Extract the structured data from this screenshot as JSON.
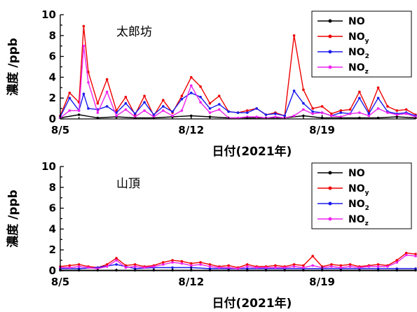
{
  "chart_data": [
    {
      "type": "line",
      "site_label": "太郎坊",
      "ylabel": "濃度 /ppb",
      "xlabel": "日付(2021年)",
      "ylim": [
        0,
        10
      ],
      "yticks": [
        0,
        2,
        4,
        6,
        8,
        10
      ],
      "xlim": [
        "2021-08-05",
        "2021-08-24"
      ],
      "xticks": [
        {
          "x": "2021-08-05",
          "label": "8/5"
        },
        {
          "x": "2021-08-12",
          "label": "8/12"
        },
        {
          "x": "2021-08-19",
          "label": "8/19"
        }
      ],
      "legend_position": "top-right",
      "series": [
        {
          "name": "NO",
          "subscript": "",
          "color": "#000000",
          "x": [
            "2021-08-05",
            "2021-08-06",
            "2021-08-07",
            "2021-08-08",
            "2021-08-09",
            "2021-08-10",
            "2021-08-11",
            "2021-08-12",
            "2021-08-13",
            "2021-08-14",
            "2021-08-15",
            "2021-08-16",
            "2021-08-17",
            "2021-08-18",
            "2021-08-19",
            "2021-08-20",
            "2021-08-21",
            "2021-08-22",
            "2021-08-23",
            "2021-08-24"
          ],
          "values": [
            0.1,
            0.4,
            0.1,
            0.2,
            0.1,
            0.1,
            0.2,
            0.3,
            0.2,
            0.1,
            0.1,
            0.1,
            0.1,
            0.3,
            0.1,
            0.1,
            0.1,
            0.1,
            0.2,
            0.1
          ]
        },
        {
          "name": "NO",
          "subscript": "y",
          "color": "#ee0000",
          "x": [
            "2021-08-05",
            "2021-08-05 12:00",
            "2021-08-06",
            "2021-08-06 06:00",
            "2021-08-06 12:00",
            "2021-08-07",
            "2021-08-07 12:00",
            "2021-08-08",
            "2021-08-08 12:00",
            "2021-08-09",
            "2021-08-09 12:00",
            "2021-08-10",
            "2021-08-10 12:00",
            "2021-08-11",
            "2021-08-11 12:00",
            "2021-08-12",
            "2021-08-12 12:00",
            "2021-08-13",
            "2021-08-13 12:00",
            "2021-08-14",
            "2021-08-14 12:00",
            "2021-08-15",
            "2021-08-15 12:00",
            "2021-08-16",
            "2021-08-16 12:00",
            "2021-08-17",
            "2021-08-17 12:00",
            "2021-08-18",
            "2021-08-18 12:00",
            "2021-08-19",
            "2021-08-19 12:00",
            "2021-08-20",
            "2021-08-20 12:00",
            "2021-08-21",
            "2021-08-21 12:00",
            "2021-08-22",
            "2021-08-22 12:00",
            "2021-08-23",
            "2021-08-23 12:00",
            "2021-08-24"
          ],
          "values": [
            0.3,
            2.5,
            1.6,
            8.9,
            4.5,
            1.5,
            3.8,
            0.8,
            2.1,
            0.4,
            2.2,
            0.3,
            1.8,
            0.6,
            2.2,
            4.0,
            3.1,
            1.5,
            2.2,
            0.7,
            0.6,
            0.8,
            1.0,
            0.4,
            0.6,
            0.3,
            8.0,
            2.8,
            1.0,
            1.2,
            0.5,
            0.8,
            0.9,
            2.6,
            0.7,
            3.0,
            1.2,
            0.8,
            0.9,
            0.4
          ]
        },
        {
          "name": "NO",
          "subscript": "2",
          "color": "#1a1aee",
          "x": [
            "2021-08-05",
            "2021-08-05 12:00",
            "2021-08-06",
            "2021-08-06 06:00",
            "2021-08-06 12:00",
            "2021-08-07",
            "2021-08-07 12:00",
            "2021-08-08",
            "2021-08-08 12:00",
            "2021-08-09",
            "2021-08-09 12:00",
            "2021-08-10",
            "2021-08-10 12:00",
            "2021-08-11",
            "2021-08-11 12:00",
            "2021-08-12",
            "2021-08-12 12:00",
            "2021-08-13",
            "2021-08-13 12:00",
            "2021-08-14",
            "2021-08-14 12:00",
            "2021-08-15",
            "2021-08-15 12:00",
            "2021-08-16",
            "2021-08-16 12:00",
            "2021-08-17",
            "2021-08-17 12:00",
            "2021-08-18",
            "2021-08-18 12:00",
            "2021-08-19",
            "2021-08-19 12:00",
            "2021-08-20",
            "2021-08-20 12:00",
            "2021-08-21",
            "2021-08-21 12:00",
            "2021-08-22",
            "2021-08-22 12:00",
            "2021-08-23",
            "2021-08-23 12:00",
            "2021-08-24"
          ],
          "values": [
            0.2,
            2.0,
            0.8,
            2.4,
            1.0,
            0.9,
            1.2,
            0.6,
            1.5,
            0.5,
            1.6,
            0.4,
            1.2,
            0.7,
            1.9,
            2.5,
            2.1,
            1.0,
            1.4,
            0.7,
            0.6,
            0.6,
            1.0,
            0.4,
            0.5,
            0.3,
            2.7,
            1.5,
            0.7,
            0.6,
            0.3,
            0.6,
            0.5,
            2.0,
            0.5,
            2.0,
            0.7,
            0.5,
            0.6,
            0.3
          ]
        },
        {
          "name": "NO",
          "subscript": "z",
          "color": "#ee22ee",
          "x": [
            "2021-08-05",
            "2021-08-05 12:00",
            "2021-08-06",
            "2021-08-06 06:00",
            "2021-08-06 12:00",
            "2021-08-07",
            "2021-08-07 12:00",
            "2021-08-08",
            "2021-08-08 12:00",
            "2021-08-09",
            "2021-08-09 12:00",
            "2021-08-10",
            "2021-08-10 12:00",
            "2021-08-11",
            "2021-08-11 12:00",
            "2021-08-12",
            "2021-08-12 12:00",
            "2021-08-13",
            "2021-08-13 12:00",
            "2021-08-14",
            "2021-08-14 12:00",
            "2021-08-15",
            "2021-08-15 12:00",
            "2021-08-16",
            "2021-08-16 12:00",
            "2021-08-17",
            "2021-08-17 12:00",
            "2021-08-18",
            "2021-08-18 12:00",
            "2021-08-19",
            "2021-08-19 12:00",
            "2021-08-20",
            "2021-08-20 12:00",
            "2021-08-21",
            "2021-08-21 12:00",
            "2021-08-22",
            "2021-08-22 12:00",
            "2021-08-23",
            "2021-08-23 12:00",
            "2021-08-24"
          ],
          "values": [
            0.1,
            0.8,
            0.8,
            7.0,
            3.5,
            0.6,
            2.6,
            0.3,
            0.9,
            0.2,
            0.8,
            0.2,
            0.8,
            0.3,
            0.8,
            3.2,
            1.6,
            0.6,
            0.9,
            0.1,
            0.1,
            0.2,
            0.2,
            0.1,
            0.2,
            0.1,
            0.3,
            0.9,
            0.5,
            0.6,
            0.3,
            0.2,
            0.5,
            0.6,
            0.3,
            1.0,
            0.6,
            0.4,
            0.5,
            0.2
          ]
        }
      ]
    },
    {
      "type": "line",
      "site_label": "山頂",
      "ylabel": "濃度 /ppb",
      "xlabel": "日付(2021年)",
      "ylim": [
        0,
        10
      ],
      "yticks": [
        0,
        2,
        4,
        6,
        8,
        10
      ],
      "xlim": [
        "2021-08-05",
        "2021-08-24"
      ],
      "xticks": [
        {
          "x": "2021-08-05",
          "label": "8/5"
        },
        {
          "x": "2021-08-12",
          "label": "8/12"
        },
        {
          "x": "2021-08-19",
          "label": "8/19"
        }
      ],
      "legend_position": "top-right",
      "series": [
        {
          "name": "NO",
          "subscript": "",
          "color": "#000000",
          "x": [
            "2021-08-05",
            "2021-08-06",
            "2021-08-07",
            "2021-08-08",
            "2021-08-09",
            "2021-08-10",
            "2021-08-11",
            "2021-08-12",
            "2021-08-13",
            "2021-08-14",
            "2021-08-15",
            "2021-08-16",
            "2021-08-17",
            "2021-08-18",
            "2021-08-19",
            "2021-08-20",
            "2021-08-21",
            "2021-08-22",
            "2021-08-23",
            "2021-08-24"
          ],
          "values": [
            0.05,
            0.05,
            0.05,
            0.05,
            0.05,
            0.05,
            0.05,
            0.05,
            0.05,
            0.05,
            0.05,
            0.05,
            0.05,
            0.05,
            0.05,
            0.05,
            0.05,
            0.05,
            0.05,
            0.05
          ]
        },
        {
          "name": "NO",
          "subscript": "y",
          "color": "#ee0000",
          "x": [
            "2021-08-05",
            "2021-08-05 12:00",
            "2021-08-06",
            "2021-08-06 12:00",
            "2021-08-07",
            "2021-08-07 12:00",
            "2021-08-08",
            "2021-08-08 12:00",
            "2021-08-09",
            "2021-08-09 12:00",
            "2021-08-10",
            "2021-08-10 12:00",
            "2021-08-11",
            "2021-08-11 12:00",
            "2021-08-12",
            "2021-08-12 12:00",
            "2021-08-13",
            "2021-08-13 12:00",
            "2021-08-14",
            "2021-08-14 12:00",
            "2021-08-15",
            "2021-08-15 12:00",
            "2021-08-16",
            "2021-08-16 12:00",
            "2021-08-17",
            "2021-08-17 12:00",
            "2021-08-18",
            "2021-08-18 12:00",
            "2021-08-19",
            "2021-08-19 12:00",
            "2021-08-20",
            "2021-08-20 12:00",
            "2021-08-21",
            "2021-08-21 12:00",
            "2021-08-22",
            "2021-08-22 12:00",
            "2021-08-23",
            "2021-08-23 12:00",
            "2021-08-24"
          ],
          "values": [
            0.4,
            0.5,
            0.6,
            0.4,
            0.3,
            0.6,
            1.2,
            0.5,
            0.6,
            0.4,
            0.5,
            0.8,
            1.0,
            0.9,
            0.7,
            0.8,
            0.6,
            0.4,
            0.5,
            0.3,
            0.6,
            0.4,
            0.4,
            0.5,
            0.4,
            0.6,
            0.5,
            1.4,
            0.4,
            0.6,
            0.5,
            0.6,
            0.4,
            0.5,
            0.6,
            0.5,
            1.0,
            1.7,
            1.6
          ]
        },
        {
          "name": "NO",
          "subscript": "2",
          "color": "#1a1aee",
          "x": [
            "2021-08-05",
            "2021-08-06",
            "2021-08-07",
            "2021-08-08",
            "2021-08-09",
            "2021-08-10",
            "2021-08-11",
            "2021-08-12",
            "2021-08-13",
            "2021-08-14",
            "2021-08-15",
            "2021-08-16",
            "2021-08-17",
            "2021-08-18",
            "2021-08-19",
            "2021-08-20",
            "2021-08-21",
            "2021-08-22",
            "2021-08-23",
            "2021-08-24"
          ],
          "values": [
            0.2,
            0.2,
            0.3,
            0.6,
            0.2,
            0.3,
            0.3,
            0.3,
            0.2,
            0.2,
            0.2,
            0.2,
            0.2,
            0.2,
            0.2,
            0.2,
            0.2,
            0.2,
            0.2,
            0.2
          ]
        },
        {
          "name": "NO",
          "subscript": "z",
          "color": "#ee22ee",
          "x": [
            "2021-08-05",
            "2021-08-05 12:00",
            "2021-08-06",
            "2021-08-06 12:00",
            "2021-08-07",
            "2021-08-07 12:00",
            "2021-08-08",
            "2021-08-08 12:00",
            "2021-08-09",
            "2021-08-09 12:00",
            "2021-08-10",
            "2021-08-10 12:00",
            "2021-08-11",
            "2021-08-11 12:00",
            "2021-08-12",
            "2021-08-12 12:00",
            "2021-08-13",
            "2021-08-13 12:00",
            "2021-08-14",
            "2021-08-14 12:00",
            "2021-08-15",
            "2021-08-15 12:00",
            "2021-08-16",
            "2021-08-16 12:00",
            "2021-08-17",
            "2021-08-17 12:00",
            "2021-08-18",
            "2021-08-18 12:00",
            "2021-08-19",
            "2021-08-19 12:00",
            "2021-08-20",
            "2021-08-20 12:00",
            "2021-08-21",
            "2021-08-21 12:00",
            "2021-08-22",
            "2021-08-22 12:00",
            "2021-08-23",
            "2021-08-23 12:00",
            "2021-08-24"
          ],
          "values": [
            0.3,
            0.3,
            0.4,
            0.3,
            0.2,
            0.4,
            1.0,
            0.3,
            0.4,
            0.3,
            0.4,
            0.6,
            0.8,
            0.7,
            0.5,
            0.6,
            0.4,
            0.3,
            0.3,
            0.2,
            0.4,
            0.3,
            0.3,
            0.3,
            0.3,
            0.4,
            0.3,
            0.5,
            0.3,
            0.4,
            0.3,
            0.4,
            0.3,
            0.4,
            0.4,
            0.4,
            0.8,
            1.5,
            1.4
          ]
        }
      ]
    }
  ]
}
